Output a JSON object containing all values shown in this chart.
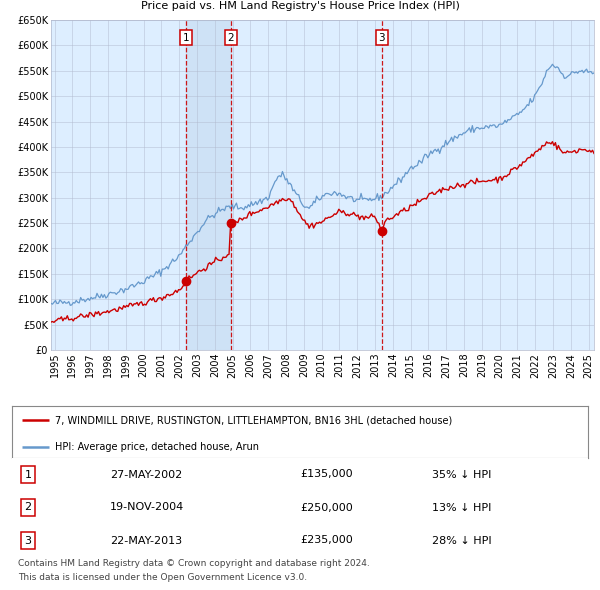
{
  "title": "7, WINDMILL DRIVE, RUSTINGTON, LITTLEHAMPTON, BN16 3HL",
  "subtitle": "Price paid vs. HM Land Registry's House Price Index (HPI)",
  "legend_line1": "7, WINDMILL DRIVE, RUSTINGTON, LITTLEHAMPTON, BN16 3HL (detached house)",
  "legend_line2": "HPI: Average price, detached house, Arun",
  "footer1": "Contains HM Land Registry data © Crown copyright and database right 2024.",
  "footer2": "This data is licensed under the Open Government Licence v3.0.",
  "transactions": [
    {
      "num": 1,
      "date": "27-MAY-2002",
      "price": 135000,
      "price_str": "£135,000",
      "pct": "35%",
      "dir": "↓"
    },
    {
      "num": 2,
      "date": "19-NOV-2004",
      "price": 250000,
      "price_str": "£250,000",
      "pct": "13%",
      "dir": "↓"
    },
    {
      "num": 3,
      "date": "22-MAY-2013",
      "price": 235000,
      "price_str": "£235,000",
      "pct": "28%",
      "dir": "↓"
    }
  ],
  "transaction_dates_decimal": [
    2002.4,
    2004.89,
    2013.39
  ],
  "transaction_prices": [
    135000,
    250000,
    235000
  ],
  "hpi_color": "#6699cc",
  "price_color": "#cc0000",
  "bg_color": "#ddeeff",
  "shade_color": "#cce0f5",
  "shaded_region": [
    2002.4,
    2004.89
  ],
  "ylim": [
    0,
    650000
  ],
  "xlim_start": 1994.8,
  "xlim_end": 2025.3,
  "yticks": [
    0,
    50000,
    100000,
    150000,
    200000,
    250000,
    300000,
    350000,
    400000,
    450000,
    500000,
    550000,
    600000,
    650000
  ],
  "xticks": [
    1995,
    1996,
    1997,
    1998,
    1999,
    2000,
    2001,
    2002,
    2003,
    2004,
    2005,
    2006,
    2007,
    2008,
    2009,
    2010,
    2011,
    2012,
    2013,
    2014,
    2015,
    2016,
    2017,
    2018,
    2019,
    2020,
    2021,
    2022,
    2023,
    2024,
    2025
  ]
}
